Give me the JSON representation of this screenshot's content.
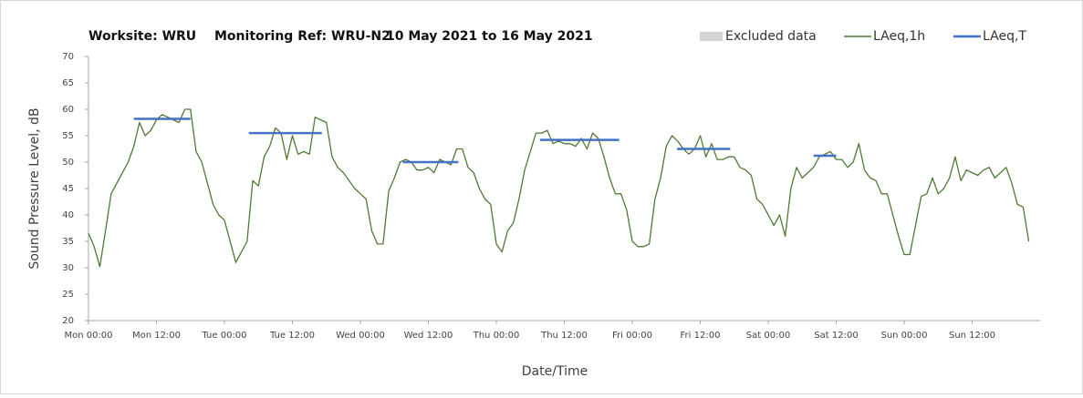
{
  "chart_data": {
    "type": "line",
    "title_parts": [
      "Worksite: WRU",
      "Monitoring Ref: WRU-N2",
      "10 May 2021 to 16 May 2021"
    ],
    "xlabel": "Date/Time",
    "ylabel": "Sound Pressure Level, dB",
    "xlim": [
      0,
      168
    ],
    "ylim": [
      20,
      70
    ],
    "yticks": [
      20,
      25,
      30,
      35,
      40,
      45,
      50,
      55,
      60,
      65,
      70
    ],
    "xticks": [
      {
        "value": 0,
        "label": "Mon 00:00"
      },
      {
        "value": 12,
        "label": "Mon 12:00"
      },
      {
        "value": 24,
        "label": "Tue 00:00"
      },
      {
        "value": 36,
        "label": "Tue 12:00"
      },
      {
        "value": 48,
        "label": "Wed 00:00"
      },
      {
        "value": 60,
        "label": "Wed 12:00"
      },
      {
        "value": 72,
        "label": "Thu 00:00"
      },
      {
        "value": 84,
        "label": "Thu 12:00"
      },
      {
        "value": 96,
        "label": "Fri 00:00"
      },
      {
        "value": 108,
        "label": "Fri 12:00"
      },
      {
        "value": 120,
        "label": "Sat 00:00"
      },
      {
        "value": 132,
        "label": "Sat 12:00"
      },
      {
        "value": 144,
        "label": "Sun 00:00"
      },
      {
        "value": 156,
        "label": "Sun 12:00"
      }
    ],
    "grid": false,
    "legend": "top-right",
    "series": [
      {
        "name": "Excluded data",
        "kind": "area",
        "color": "#d4d4d4",
        "x": [],
        "values": []
      },
      {
        "name": "LAeq,1h",
        "kind": "line",
        "color": "#4e7a34",
        "x": [
          0,
          1,
          2,
          3,
          4,
          5,
          6,
          7,
          8,
          9,
          10,
          11,
          12,
          13,
          14,
          15,
          16,
          17,
          18,
          19,
          20,
          21,
          22,
          23,
          24,
          25,
          26,
          27,
          28,
          29,
          30,
          31,
          32,
          33,
          34,
          35,
          36,
          37,
          38,
          39,
          40,
          41,
          42,
          43,
          44,
          45,
          46,
          47,
          48,
          49,
          50,
          51,
          52,
          53,
          54,
          55,
          56,
          57,
          58,
          59,
          60,
          61,
          62,
          63,
          64,
          65,
          66,
          67,
          68,
          69,
          70,
          71,
          72,
          73,
          74,
          75,
          76,
          77,
          78,
          79,
          80,
          81,
          82,
          83,
          84,
          85,
          86,
          87,
          88,
          89,
          90,
          91,
          92,
          93,
          94,
          95,
          96,
          97,
          98,
          99,
          100,
          101,
          102,
          103,
          104,
          105,
          106,
          107,
          108,
          109,
          110,
          111,
          112,
          113,
          114,
          115,
          116,
          117,
          118,
          119,
          120,
          121,
          122,
          123,
          124,
          125,
          126,
          127,
          128,
          129,
          130,
          131,
          132,
          133,
          134,
          135,
          136,
          137,
          138,
          139,
          140,
          141,
          142,
          143,
          144,
          145,
          146,
          147,
          148,
          149,
          150,
          151,
          152,
          153,
          154,
          155,
          156,
          157,
          158,
          159,
          160,
          161,
          162,
          163,
          164,
          165,
          166
        ],
        "values": [
          36.5,
          34,
          30.2,
          37,
          44,
          46,
          48,
          50,
          53,
          57.5,
          55,
          56,
          58,
          59,
          58.5,
          58,
          57.5,
          60,
          60,
          52,
          50,
          46,
          42,
          40,
          39,
          35,
          31,
          33,
          35,
          46.5,
          45.5,
          51,
          53,
          56.5,
          55.5,
          50.5,
          55,
          51.5,
          52,
          51.5,
          58.5,
          58,
          57.5,
          51,
          49,
          48,
          46.5,
          45,
          44,
          43,
          37,
          34.5,
          34.5,
          44.5,
          47,
          50,
          50.5,
          50,
          48.5,
          48.5,
          49,
          48,
          50.5,
          50,
          49.5,
          52.5,
          52.5,
          49,
          48,
          45,
          43,
          42,
          34.5,
          33,
          37,
          38.5,
          43,
          48.5,
          52,
          55.5,
          55.5,
          56,
          53.5,
          54,
          53.5,
          53.5,
          53,
          54.5,
          52.5,
          55.5,
          54.5,
          51,
          47,
          44,
          44,
          41,
          35,
          34,
          34,
          34.5,
          43,
          47,
          53,
          55,
          54,
          52.5,
          51.5,
          52.5,
          55,
          51,
          53.5,
          50.5,
          50.5,
          51,
          51,
          49,
          48.5,
          47.5,
          43,
          42,
          40,
          38,
          40,
          36,
          45,
          49,
          47,
          48,
          49,
          51,
          51.5,
          52,
          50.5,
          50.5,
          49,
          50,
          53.5,
          48.5,
          47,
          46.5,
          44,
          44,
          40,
          36,
          32.5,
          32.5,
          38,
          43.5,
          44,
          47,
          44,
          45,
          47,
          51,
          46.5,
          48.5,
          48,
          47.5,
          48.5,
          49,
          47,
          48,
          49,
          46,
          42,
          41.5,
          35
        ]
      },
      {
        "name": "LAeq,T",
        "kind": "line",
        "color": "#4472c4",
        "x": [
          8,
          18,
          23,
          28.3,
          41.2,
          48,
          55.5,
          65.3,
          72,
          79.7,
          93.7,
          99,
          103.9,
          113.3,
          120,
          128,
          132
        ],
        "values": [
          58.2,
          58.2,
          null,
          55.5,
          55.5,
          null,
          50,
          50,
          null,
          54.2,
          54.2,
          null,
          52.5,
          52.5,
          null,
          51.2,
          51.2
        ]
      }
    ]
  }
}
